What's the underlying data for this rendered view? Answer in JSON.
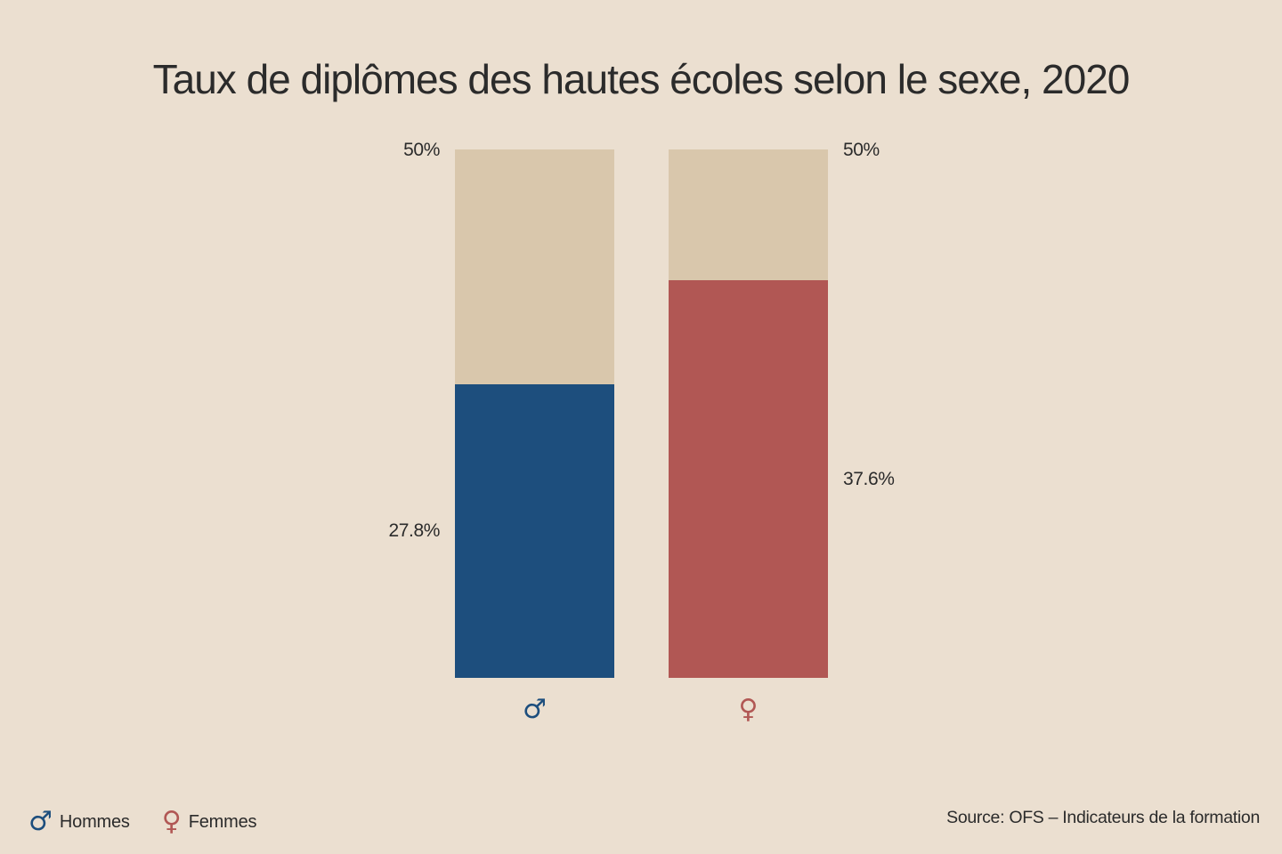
{
  "title": "Taux de diplômes des hautes écoles selon le sexe, 2020",
  "chart_data": {
    "type": "bar",
    "categories": [
      "Hommes",
      "Femmes"
    ],
    "values": [
      27.8,
      37.6
    ],
    "value_labels": [
      "27.8%",
      "37.6%"
    ],
    "axis_max_labels": [
      "50%",
      "50%"
    ],
    "category_symbols": [
      "♂",
      "♀"
    ],
    "ylim": [
      0,
      50
    ],
    "colors": {
      "background": "#ebdfd0",
      "track": "#d9c7ac",
      "series": [
        "#1d4e7d",
        "#b15754"
      ],
      "text": "#2b2b2b"
    }
  },
  "legend": {
    "items": [
      {
        "symbol": "♂",
        "label": "Hommes"
      },
      {
        "symbol": "♀",
        "label": "Femmes"
      }
    ]
  },
  "source": "Source: OFS – Indicateurs de la formation"
}
